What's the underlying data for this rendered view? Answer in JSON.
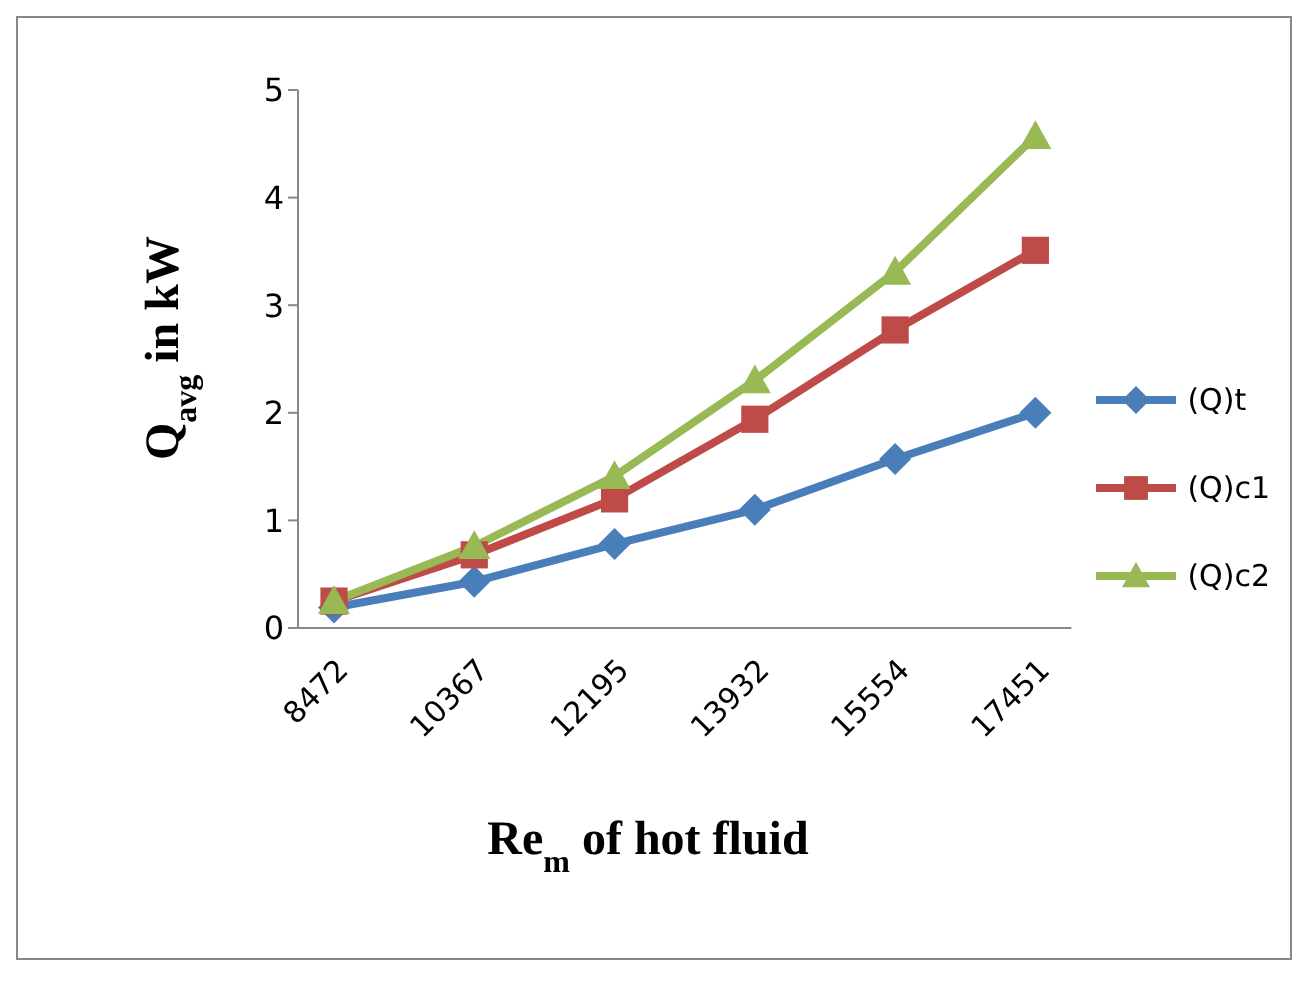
{
  "chart_data": {
    "type": "line",
    "xlabel": "Re$_{m}$ of hot fluid",
    "ylabel": "Q$_{avg}$ in kW",
    "categories": [
      "8472",
      "10367",
      "12195",
      "13932",
      "15554",
      "17451"
    ],
    "series": [
      {
        "name": "(Q)t",
        "color": "#4a7ebb",
        "marker": "diamond",
        "values": [
          0.19,
          0.43,
          0.78,
          1.1,
          1.57,
          2.0
        ]
      },
      {
        "name": "(Q)c1",
        "color": "#be4b48",
        "marker": "square",
        "values": [
          0.25,
          0.68,
          1.2,
          1.94,
          2.77,
          3.51
        ]
      },
      {
        "name": "(Q)c2",
        "color": "#98b954",
        "marker": "triangle",
        "values": [
          0.25,
          0.76,
          1.41,
          2.3,
          3.31,
          4.57
        ]
      }
    ],
    "ylim": [
      0,
      5
    ],
    "yticks": [
      0,
      1,
      2,
      3,
      4,
      5
    ],
    "grid": false,
    "legend": "right",
    "line_style": "solid"
  }
}
